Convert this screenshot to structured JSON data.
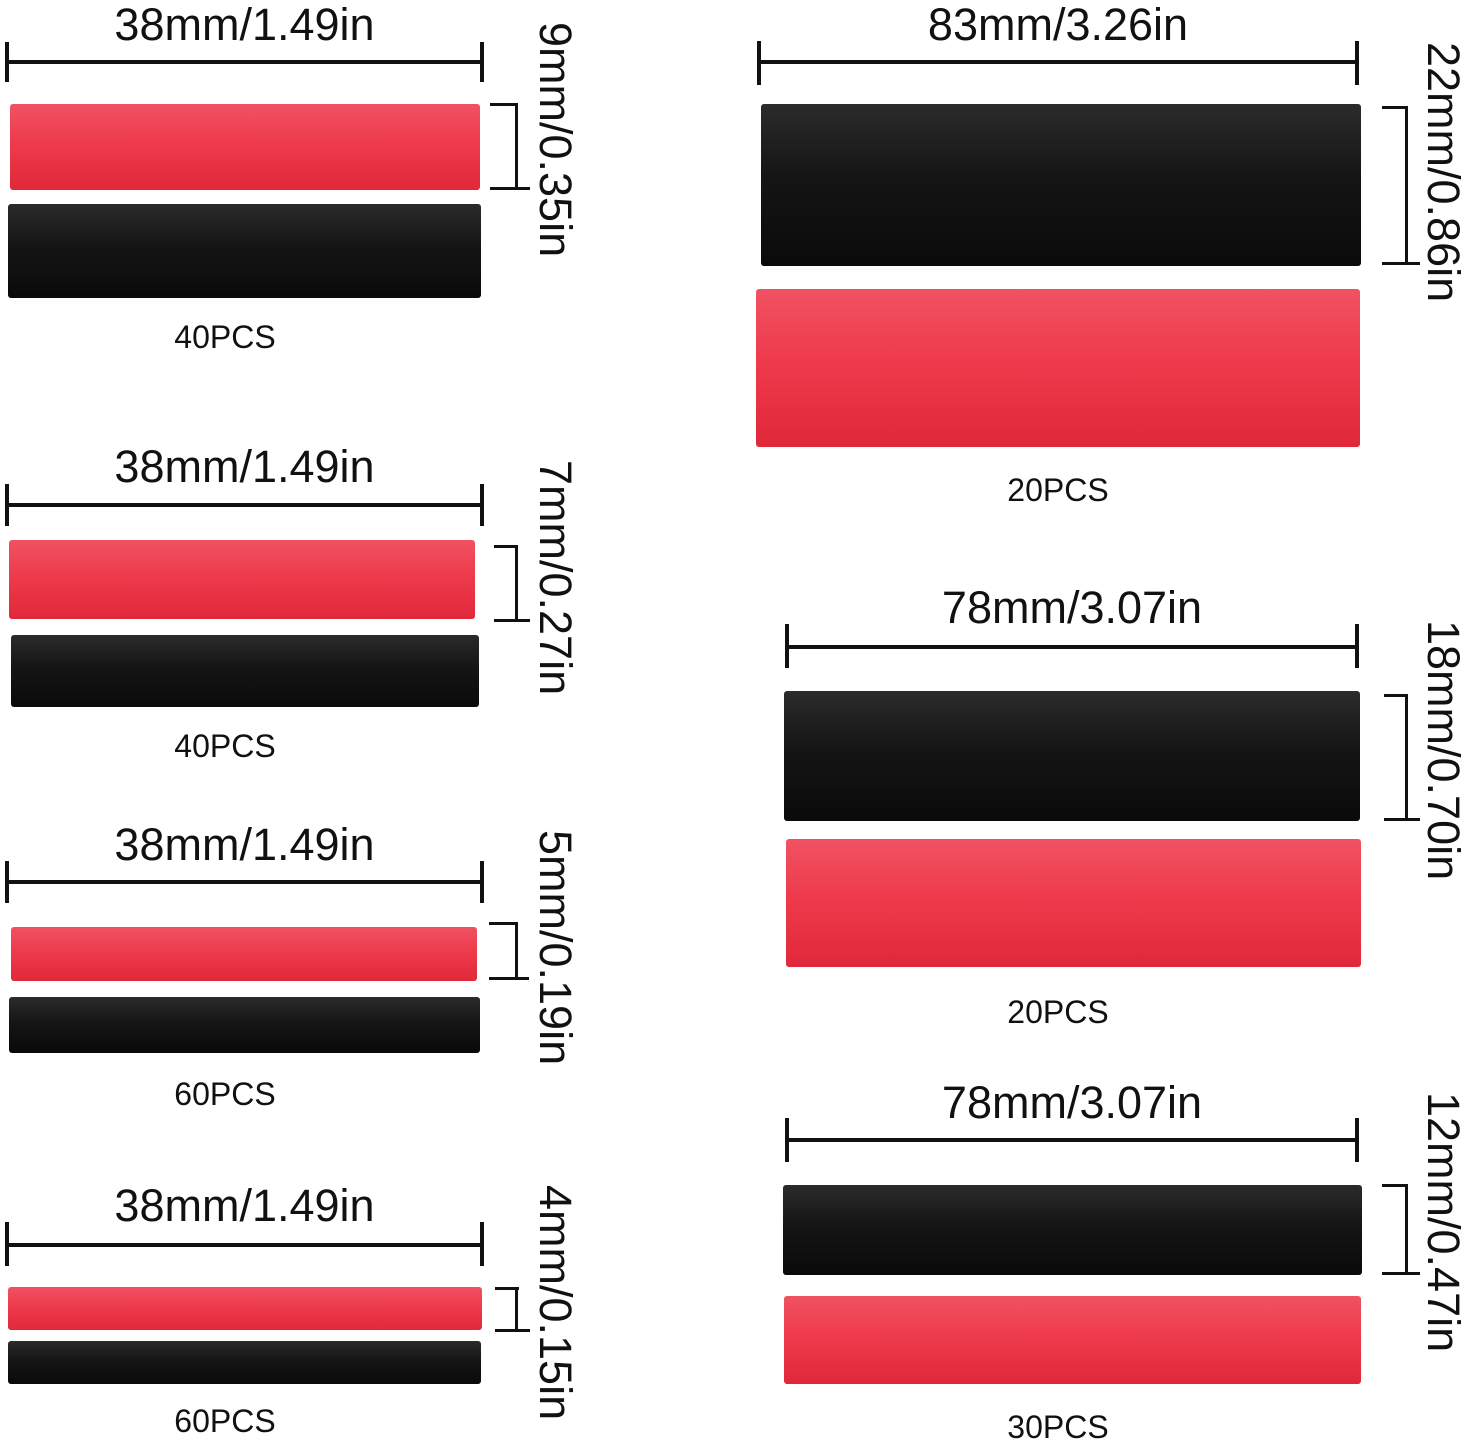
{
  "colors": {
    "red_tube": "#ee3b4c",
    "black_tube": "#151515",
    "lines": "#111111"
  },
  "groups": [
    {
      "length": "38mm/1.49in",
      "diameter": "9mm/0.35in",
      "quantity": "40PCS",
      "tubes": [
        "red",
        "black"
      ]
    },
    {
      "length": "38mm/1.49in",
      "diameter": "7mm/0.27in",
      "quantity": "40PCS",
      "tubes": [
        "red",
        "black"
      ]
    },
    {
      "length": "38mm/1.49in",
      "diameter": "5mm/0.19in",
      "quantity": "60PCS",
      "tubes": [
        "red",
        "black"
      ]
    },
    {
      "length": "38mm/1.49in",
      "diameter": "4mm/0.15in",
      "quantity": "60PCS",
      "tubes": [
        "red",
        "black"
      ]
    },
    {
      "length": "83mm/3.26in",
      "diameter": "22mm/0.86in",
      "quantity": "20PCS",
      "tubes": [
        "black",
        "red"
      ]
    },
    {
      "length": "78mm/3.07in",
      "diameter": "18mm/0.70in",
      "quantity": "20PCS",
      "tubes": [
        "black",
        "red"
      ]
    },
    {
      "length": "78mm/3.07in",
      "diameter": "12mm/0.47in",
      "quantity": "30PCS",
      "tubes": [
        "black",
        "red"
      ]
    }
  ]
}
